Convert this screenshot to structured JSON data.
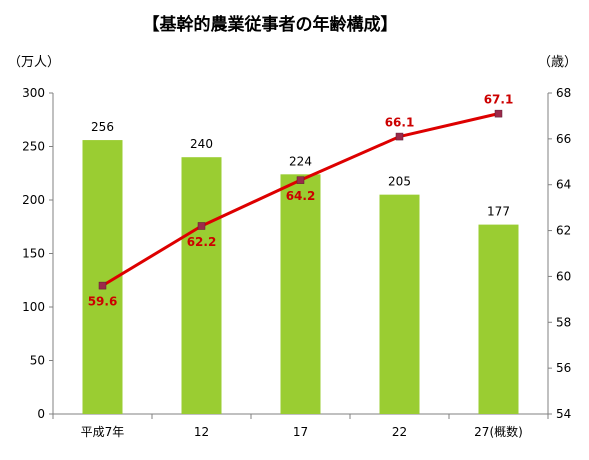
{
  "chart_data": {
    "type": "bar+line",
    "title": "【基幹的農業従事者の年齢構成】",
    "categories": [
      "平成7年",
      "12",
      "17",
      "22",
      "27(概数)"
    ],
    "series": [
      {
        "type": "bar",
        "axis": "left",
        "values": [
          256,
          240,
          224,
          205,
          177
        ]
      },
      {
        "type": "line",
        "axis": "right",
        "values": [
          59.6,
          62.2,
          64.2,
          66.1,
          67.1
        ]
      }
    ],
    "y_left": {
      "unit": "（万人）",
      "ylim": [
        0,
        300
      ],
      "ticks": [
        0,
        50,
        100,
        150,
        200,
        250,
        300
      ]
    },
    "y_right": {
      "unit": "（歳）",
      "ylim": [
        54,
        68
      ],
      "ticks": [
        54,
        56,
        58,
        60,
        62,
        64,
        66,
        68
      ]
    },
    "colors": {
      "bar": "#9acd32",
      "line": "#dd0000",
      "marker": "#9b2a4a",
      "line_label": "#cc0000"
    },
    "grid": false,
    "legend": "none"
  }
}
